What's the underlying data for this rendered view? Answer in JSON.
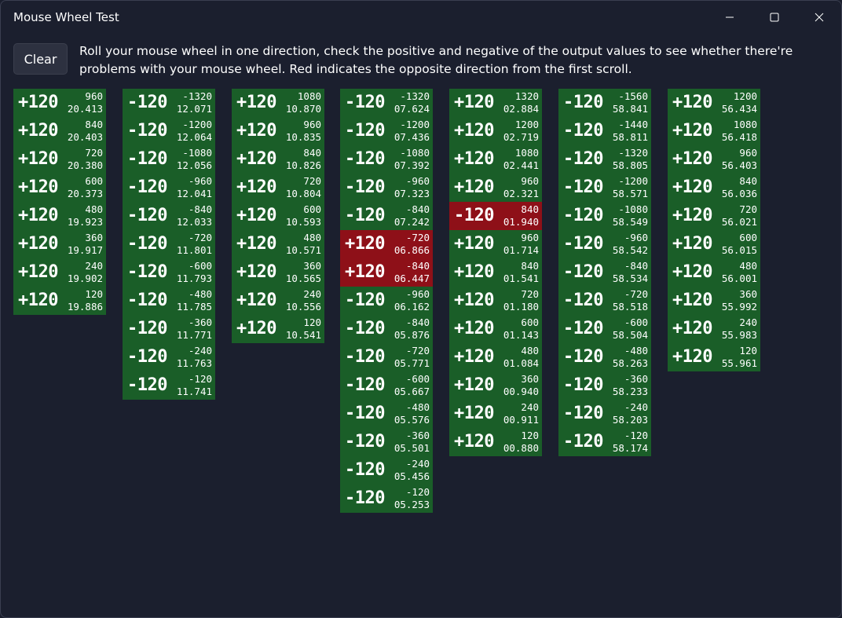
{
  "window": {
    "title": "Mouse Wheel Test",
    "controls": [
      "minimize",
      "maximize",
      "close"
    ]
  },
  "toolbar": {
    "clear_label": "Clear"
  },
  "instructions": "Roll your mouse wheel in one direction, check the positive and negative of the output values to see whether there're problems with your mouse wheel. Red indicates the opposite direction from the first scroll.",
  "colors": {
    "normal": "#1a5e28",
    "opposite": "#8e1018",
    "background": "#1b1f2e"
  },
  "columns": [
    {
      "entries": [
        {
          "delta": "+120",
          "total": "960",
          "time": "20.413",
          "opposite": false
        },
        {
          "delta": "+120",
          "total": "840",
          "time": "20.403",
          "opposite": false
        },
        {
          "delta": "+120",
          "total": "720",
          "time": "20.380",
          "opposite": false
        },
        {
          "delta": "+120",
          "total": "600",
          "time": "20.373",
          "opposite": false
        },
        {
          "delta": "+120",
          "total": "480",
          "time": "19.923",
          "opposite": false
        },
        {
          "delta": "+120",
          "total": "360",
          "time": "19.917",
          "opposite": false
        },
        {
          "delta": "+120",
          "total": "240",
          "time": "19.902",
          "opposite": false
        },
        {
          "delta": "+120",
          "total": "120",
          "time": "19.886",
          "opposite": false
        }
      ]
    },
    {
      "entries": [
        {
          "delta": "-120",
          "total": "-1320",
          "time": "12.071",
          "opposite": false
        },
        {
          "delta": "-120",
          "total": "-1200",
          "time": "12.064",
          "opposite": false
        },
        {
          "delta": "-120",
          "total": "-1080",
          "time": "12.056",
          "opposite": false
        },
        {
          "delta": "-120",
          "total": "-960",
          "time": "12.041",
          "opposite": false
        },
        {
          "delta": "-120",
          "total": "-840",
          "time": "12.033",
          "opposite": false
        },
        {
          "delta": "-120",
          "total": "-720",
          "time": "11.801",
          "opposite": false
        },
        {
          "delta": "-120",
          "total": "-600",
          "time": "11.793",
          "opposite": false
        },
        {
          "delta": "-120",
          "total": "-480",
          "time": "11.785",
          "opposite": false
        },
        {
          "delta": "-120",
          "total": "-360",
          "time": "11.771",
          "opposite": false
        },
        {
          "delta": "-120",
          "total": "-240",
          "time": "11.763",
          "opposite": false
        },
        {
          "delta": "-120",
          "total": "-120",
          "time": "11.741",
          "opposite": false
        }
      ]
    },
    {
      "entries": [
        {
          "delta": "+120",
          "total": "1080",
          "time": "10.870",
          "opposite": false
        },
        {
          "delta": "+120",
          "total": "960",
          "time": "10.835",
          "opposite": false
        },
        {
          "delta": "+120",
          "total": "840",
          "time": "10.826",
          "opposite": false
        },
        {
          "delta": "+120",
          "total": "720",
          "time": "10.804",
          "opposite": false
        },
        {
          "delta": "+120",
          "total": "600",
          "time": "10.593",
          "opposite": false
        },
        {
          "delta": "+120",
          "total": "480",
          "time": "10.571",
          "opposite": false
        },
        {
          "delta": "+120",
          "total": "360",
          "time": "10.565",
          "opposite": false
        },
        {
          "delta": "+120",
          "total": "240",
          "time": "10.556",
          "opposite": false
        },
        {
          "delta": "+120",
          "total": "120",
          "time": "10.541",
          "opposite": false
        }
      ]
    },
    {
      "entries": [
        {
          "delta": "-120",
          "total": "-1320",
          "time": "07.624",
          "opposite": false
        },
        {
          "delta": "-120",
          "total": "-1200",
          "time": "07.436",
          "opposite": false
        },
        {
          "delta": "-120",
          "total": "-1080",
          "time": "07.392",
          "opposite": false
        },
        {
          "delta": "-120",
          "total": "-960",
          "time": "07.323",
          "opposite": false
        },
        {
          "delta": "-120",
          "total": "-840",
          "time": "07.242",
          "opposite": false
        },
        {
          "delta": "+120",
          "total": "-720",
          "time": "06.866",
          "opposite": true
        },
        {
          "delta": "+120",
          "total": "-840",
          "time": "06.447",
          "opposite": true
        },
        {
          "delta": "-120",
          "total": "-960",
          "time": "06.162",
          "opposite": false
        },
        {
          "delta": "-120",
          "total": "-840",
          "time": "05.876",
          "opposite": false
        },
        {
          "delta": "-120",
          "total": "-720",
          "time": "05.771",
          "opposite": false
        },
        {
          "delta": "-120",
          "total": "-600",
          "time": "05.667",
          "opposite": false
        },
        {
          "delta": "-120",
          "total": "-480",
          "time": "05.576",
          "opposite": false
        },
        {
          "delta": "-120",
          "total": "-360",
          "time": "05.501",
          "opposite": false
        },
        {
          "delta": "-120",
          "total": "-240",
          "time": "05.456",
          "opposite": false
        },
        {
          "delta": "-120",
          "total": "-120",
          "time": "05.253",
          "opposite": false
        }
      ]
    },
    {
      "entries": [
        {
          "delta": "+120",
          "total": "1320",
          "time": "02.884",
          "opposite": false
        },
        {
          "delta": "+120",
          "total": "1200",
          "time": "02.719",
          "opposite": false
        },
        {
          "delta": "+120",
          "total": "1080",
          "time": "02.441",
          "opposite": false
        },
        {
          "delta": "+120",
          "total": "960",
          "time": "02.321",
          "opposite": false
        },
        {
          "delta": "-120",
          "total": "840",
          "time": "01.940",
          "opposite": true
        },
        {
          "delta": "+120",
          "total": "960",
          "time": "01.714",
          "opposite": false
        },
        {
          "delta": "+120",
          "total": "840",
          "time": "01.541",
          "opposite": false
        },
        {
          "delta": "+120",
          "total": "720",
          "time": "01.180",
          "opposite": false
        },
        {
          "delta": "+120",
          "total": "600",
          "time": "01.143",
          "opposite": false
        },
        {
          "delta": "+120",
          "total": "480",
          "time": "01.084",
          "opposite": false
        },
        {
          "delta": "+120",
          "total": "360",
          "time": "00.940",
          "opposite": false
        },
        {
          "delta": "+120",
          "total": "240",
          "time": "00.911",
          "opposite": false
        },
        {
          "delta": "+120",
          "total": "120",
          "time": "00.880",
          "opposite": false
        }
      ]
    },
    {
      "entries": [
        {
          "delta": "-120",
          "total": "-1560",
          "time": "58.841",
          "opposite": false
        },
        {
          "delta": "-120",
          "total": "-1440",
          "time": "58.811",
          "opposite": false
        },
        {
          "delta": "-120",
          "total": "-1320",
          "time": "58.805",
          "opposite": false
        },
        {
          "delta": "-120",
          "total": "-1200",
          "time": "58.571",
          "opposite": false
        },
        {
          "delta": "-120",
          "total": "-1080",
          "time": "58.549",
          "opposite": false
        },
        {
          "delta": "-120",
          "total": "-960",
          "time": "58.542",
          "opposite": false
        },
        {
          "delta": "-120",
          "total": "-840",
          "time": "58.534",
          "opposite": false
        },
        {
          "delta": "-120",
          "total": "-720",
          "time": "58.518",
          "opposite": false
        },
        {
          "delta": "-120",
          "total": "-600",
          "time": "58.504",
          "opposite": false
        },
        {
          "delta": "-120",
          "total": "-480",
          "time": "58.263",
          "opposite": false
        },
        {
          "delta": "-120",
          "total": "-360",
          "time": "58.233",
          "opposite": false
        },
        {
          "delta": "-120",
          "total": "-240",
          "time": "58.203",
          "opposite": false
        },
        {
          "delta": "-120",
          "total": "-120",
          "time": "58.174",
          "opposite": false
        }
      ]
    },
    {
      "entries": [
        {
          "delta": "+120",
          "total": "1200",
          "time": "56.434",
          "opposite": false
        },
        {
          "delta": "+120",
          "total": "1080",
          "time": "56.418",
          "opposite": false
        },
        {
          "delta": "+120",
          "total": "960",
          "time": "56.403",
          "opposite": false
        },
        {
          "delta": "+120",
          "total": "840",
          "time": "56.036",
          "opposite": false
        },
        {
          "delta": "+120",
          "total": "720",
          "time": "56.021",
          "opposite": false
        },
        {
          "delta": "+120",
          "total": "600",
          "time": "56.015",
          "opposite": false
        },
        {
          "delta": "+120",
          "total": "480",
          "time": "56.001",
          "opposite": false
        },
        {
          "delta": "+120",
          "total": "360",
          "time": "55.992",
          "opposite": false
        },
        {
          "delta": "+120",
          "total": "240",
          "time": "55.983",
          "opposite": false
        },
        {
          "delta": "+120",
          "total": "120",
          "time": "55.961",
          "opposite": false
        }
      ]
    }
  ]
}
